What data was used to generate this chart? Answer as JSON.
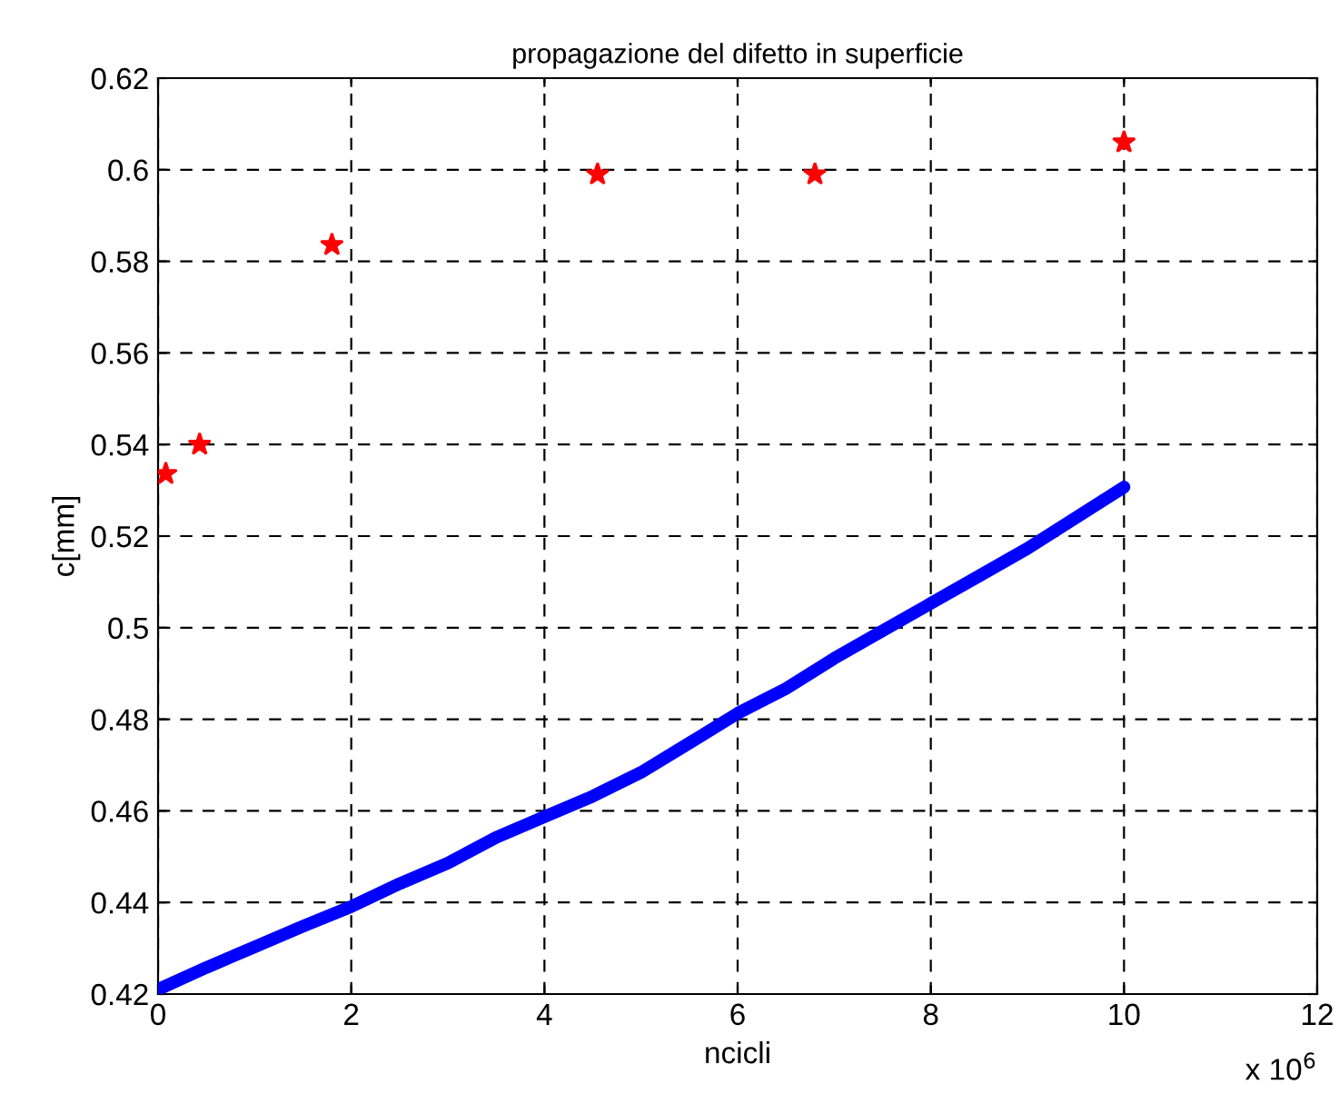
{
  "chart_data": {
    "type": "line",
    "title": "propagazione del difetto in superficie",
    "xlabel": "ncicli",
    "ylabel": "c[mm]",
    "annotations": [
      "x 10$^{6}$"
    ],
    "xlim": [
      0,
      12
    ],
    "xticks": [
      0,
      2,
      4,
      6,
      8,
      10,
      12
    ],
    "ylim": [
      0.42,
      0.62
    ],
    "yticks": [
      0.42,
      0.44,
      0.46,
      0.48,
      {
        "value": 0.5,
        "label": "0.5"
      },
      0.52,
      0.54,
      0.56,
      0.58,
      {
        "value": 0.6,
        "label": "0.6"
      },
      0.62
    ],
    "grid": true,
    "line_style": "dashed",
    "series": [
      {
        "color": "#0000ff",
        "marker": "none",
        "line_style": "solid",
        "x": [
          0,
          0.5,
          1,
          1.5,
          2,
          2.5,
          3,
          3.5,
          4,
          4.5,
          5,
          5.5,
          6,
          6.5,
          7,
          7.5,
          8,
          8.5,
          9,
          9.5,
          10
        ],
        "values": [
          0.421,
          0.4258,
          0.4303,
          0.4348,
          0.4391,
          0.4441,
          0.4486,
          0.4542,
          0.4587,
          0.4632,
          0.4684,
          0.4748,
          0.4813,
          0.4867,
          0.4933,
          0.4993,
          0.5053,
          0.5113,
          0.5173,
          0.524,
          0.5307
        ]
      },
      {
        "type": "scatter",
        "color": "#ff0000",
        "marker": "star",
        "x": [
          0.08,
          0.43,
          1.8,
          4.55,
          6.8,
          10.0
        ],
        "values": [
          0.5336,
          0.54,
          0.5836,
          0.599,
          0.599,
          0.606
        ]
      }
    ]
  }
}
